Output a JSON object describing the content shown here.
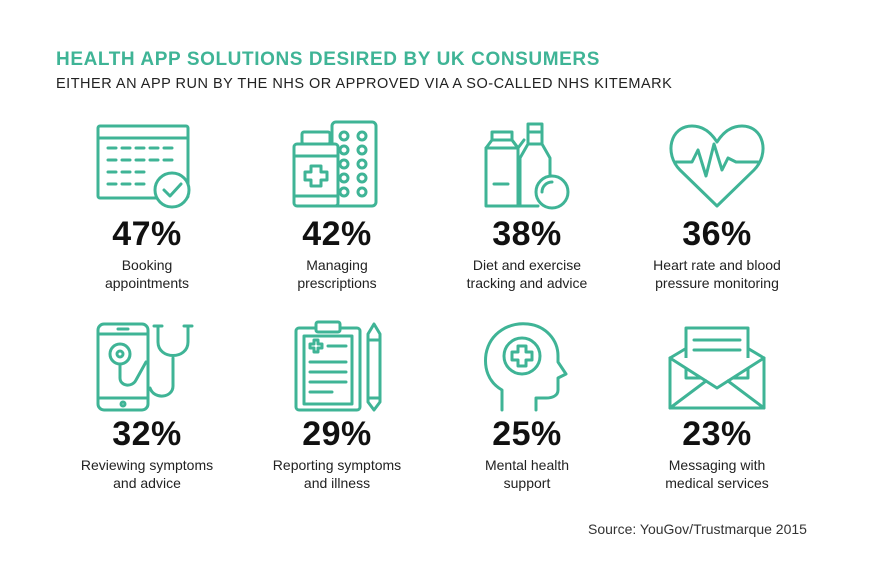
{
  "header": {
    "title": "HEALTH APP SOLUTIONS DESIRED BY UK CONSUMERS",
    "subtitle": "EITHER AN APP RUN BY THE NHS OR APPROVED VIA A SO-CALLED NHS KITEMARK"
  },
  "accent_color": "#3fb496",
  "items": [
    {
      "percent": "47%",
      "label_line1": "Booking",
      "label_line2": "appointments",
      "icon": "calendar-check-icon"
    },
    {
      "percent": "42%",
      "label_line1": "Managing",
      "label_line2": "prescriptions",
      "icon": "pill-bottle-blister-icon"
    },
    {
      "percent": "38%",
      "label_line1": "Diet and exercise",
      "label_line2": "tracking and advice",
      "icon": "milk-carton-bottle-icon"
    },
    {
      "percent": "36%",
      "label_line1": "Heart rate and blood",
      "label_line2": "pressure monitoring",
      "icon": "heartbeat-icon"
    },
    {
      "percent": "32%",
      "label_line1": "Reviewing symptoms",
      "label_line2": "and advice",
      "icon": "phone-stethoscope-icon"
    },
    {
      "percent": "29%",
      "label_line1": "Reporting symptoms",
      "label_line2": "and illness",
      "icon": "clipboard-pen-icon"
    },
    {
      "percent": "25%",
      "label_line1": "Mental health",
      "label_line2": "support",
      "icon": "head-cross-icon"
    },
    {
      "percent": "23%",
      "label_line1": "Messaging with",
      "label_line2": "medical services",
      "icon": "envelope-letter-icon"
    }
  ],
  "source": "Source: YouGov/Trustmarque 2015"
}
